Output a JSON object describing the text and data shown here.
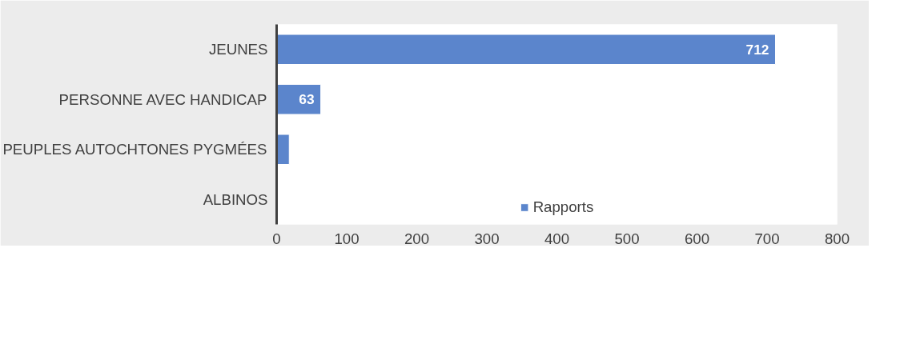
{
  "chart_data": {
    "type": "bar",
    "orientation": "horizontal",
    "categories": [
      "JEUNES",
      "PERSONNE AVEC HANDICAP",
      "PEUPLES AUTOCHTONES PYGMÉES",
      "ALBINOS"
    ],
    "series": [
      {
        "name": "Rapports",
        "color": "#5b85cc",
        "values": [
          712,
          63,
          18,
          null
        ],
        "value_labels": [
          "712",
          "63",
          null,
          null
        ]
      }
    ],
    "xlim": [
      0,
      800
    ],
    "xticks": [
      0,
      100,
      200,
      300,
      400,
      500,
      600,
      700,
      800
    ],
    "grid": false,
    "legend": "bottom"
  }
}
